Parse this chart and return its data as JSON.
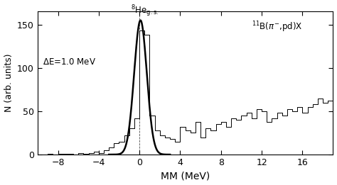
{
  "xlabel": "MM (MeV)",
  "ylabel": "N (arb. units)",
  "xlim": [
    -10,
    19
  ],
  "ylim": [
    0,
    165
  ],
  "xticks": [
    -8,
    -4,
    0,
    4,
    8,
    12,
    16
  ],
  "yticks": [
    0,
    50,
    100,
    150
  ],
  "bin_width": 0.5,
  "background_color": "#ffffff",
  "hist_color": "#000000",
  "gaussian_color": "#000000",
  "bins_left": [
    -10.0,
    -9.5,
    -9.0,
    -8.5,
    -8.0,
    -7.5,
    -7.0,
    -6.5,
    -6.0,
    -5.5,
    -5.0,
    -4.5,
    -4.0,
    -3.5,
    -3.0,
    -2.5,
    -2.0,
    -1.5,
    -1.0,
    -0.5,
    0.0,
    0.5,
    1.0,
    1.5,
    2.0,
    2.5,
    3.0,
    3.5,
    4.0,
    4.5,
    5.0,
    5.5,
    6.0,
    6.5,
    7.0,
    7.5,
    8.0,
    8.5,
    9.0,
    9.5,
    10.0,
    10.5,
    11.0,
    11.5,
    12.0,
    12.5,
    13.0,
    13.5,
    14.0,
    14.5,
    15.0,
    15.5,
    16.0,
    16.5,
    17.0,
    17.5,
    18.0,
    18.5
  ],
  "bin_heights": [
    0,
    0,
    1,
    0,
    1,
    1,
    1,
    0,
    2,
    1,
    2,
    3,
    2,
    5,
    8,
    13,
    15,
    22,
    30,
    42,
    143,
    138,
    45,
    28,
    22,
    20,
    18,
    15,
    32,
    28,
    25,
    38,
    20,
    30,
    28,
    35,
    38,
    32,
    42,
    40,
    45,
    48,
    42,
    52,
    50,
    38,
    42,
    48,
    45,
    52,
    50,
    55,
    48,
    55,
    58,
    65,
    60,
    62
  ],
  "gaussian_amplitude": 155,
  "gaussian_mean": 0.1,
  "gaussian_sigma": 0.62
}
